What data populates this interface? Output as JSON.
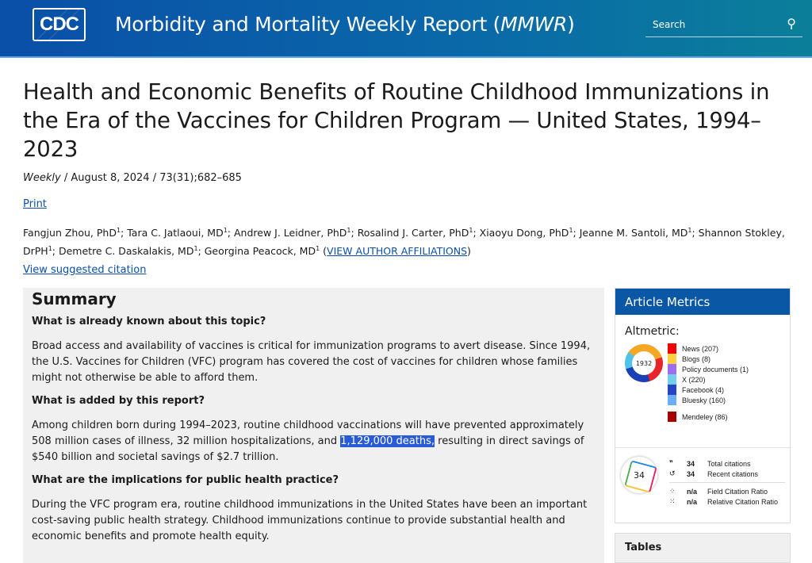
{
  "header": {
    "logo": "CDC",
    "site_title": "Morbidity and Mortality Weekly Report (",
    "site_abbr": "MMWR",
    "site_close": ")",
    "search_placeholder": "Search"
  },
  "article": {
    "title": "Health and Economic Benefits of Routine Childhood Immunizations in the Era of the Vaccines for Children Program — United States, 1994–2023",
    "series": "Weekly",
    "meta": " / August 8, 2024 / 73(31);682–685",
    "print": "Print",
    "authors": [
      {
        "name": "Fangjun Zhou, PhD"
      },
      {
        "name": "Tara C. Jatlaoui, MD"
      },
      {
        "name": "Andrew J. Leidner, PhD"
      },
      {
        "name": "Rosalind J. Carter, PhD"
      },
      {
        "name": "Xiaoyu Dong, PhD"
      },
      {
        "name": "Jeanne M. Santoli, MD"
      },
      {
        "name": "Shannon Stokley, DrPH"
      },
      {
        "name": "Demetre C. Daskalakis, MD"
      },
      {
        "name": "Georgina Peacock, MD"
      }
    ],
    "sup": "1",
    "affiliations": "VIEW AUTHOR AFFILIATIONS",
    "citation": "View suggested citation"
  },
  "summary": {
    "title": "Summary",
    "q1": "What is already known about this topic?",
    "a1": "Broad access and availability of vaccines is critical for immunization programs to avert disease. Since 1994, the U.S. Vaccines for Children (VFC) program has covered the cost of vaccines for children whose families might not otherwise be able to afford them.",
    "q2": "What is added by this report?",
    "a2_pre": "Among children born during 1994–2023, routine childhood vaccinations will have prevented approximately 508 million cases of illness, 32 million hospitalizations, and ",
    "a2_hl": "1,129,000 deaths,",
    "a2_post": " resulting in direct savings of $540 billion and societal savings of $2.7 trillion.",
    "q3": "What are the implications for public health practice?",
    "a3": "During the VFC program era, routine childhood immunizations in the United States have been an important cost-saving public health strategy. Childhood immunizations continue to provide substantial health and economic benefits and promote health equity."
  },
  "metrics": {
    "title": "Article Metrics",
    "altmetric_label": "Altmetric:",
    "altmetric_score": "1932",
    "legend": [
      {
        "label": "News (207)",
        "color": "#f20000"
      },
      {
        "label": "Blogs (8)",
        "color": "#ffd140"
      },
      {
        "label": "Policy documents (1)",
        "color": "#9e6cf0"
      },
      {
        "label": "X (220)",
        "color": "#74cfed"
      },
      {
        "label": "Facebook (4)",
        "color": "#2445c4"
      },
      {
        "label": "Bluesky (160)",
        "color": "#6aaef7"
      },
      {
        "label": "Mendeley (86)",
        "color": "#a60000"
      }
    ],
    "dimensions_score": "34",
    "citations": [
      {
        "icon": "quote-icon",
        "glyph": "❞",
        "value": "34",
        "label": "Total citations"
      },
      {
        "icon": "history-icon",
        "glyph": "↺",
        "value": "34",
        "label": "Recent citations"
      },
      {
        "icon": "field-ratio-icon",
        "glyph": "⁘",
        "value": "n/a",
        "label": "Field Citation Ratio"
      },
      {
        "icon": "relative-ratio-icon",
        "glyph": "⁙",
        "value": "n/a",
        "label": "Relative Citation Ratio"
      }
    ]
  },
  "tables": {
    "title": "Tables"
  }
}
